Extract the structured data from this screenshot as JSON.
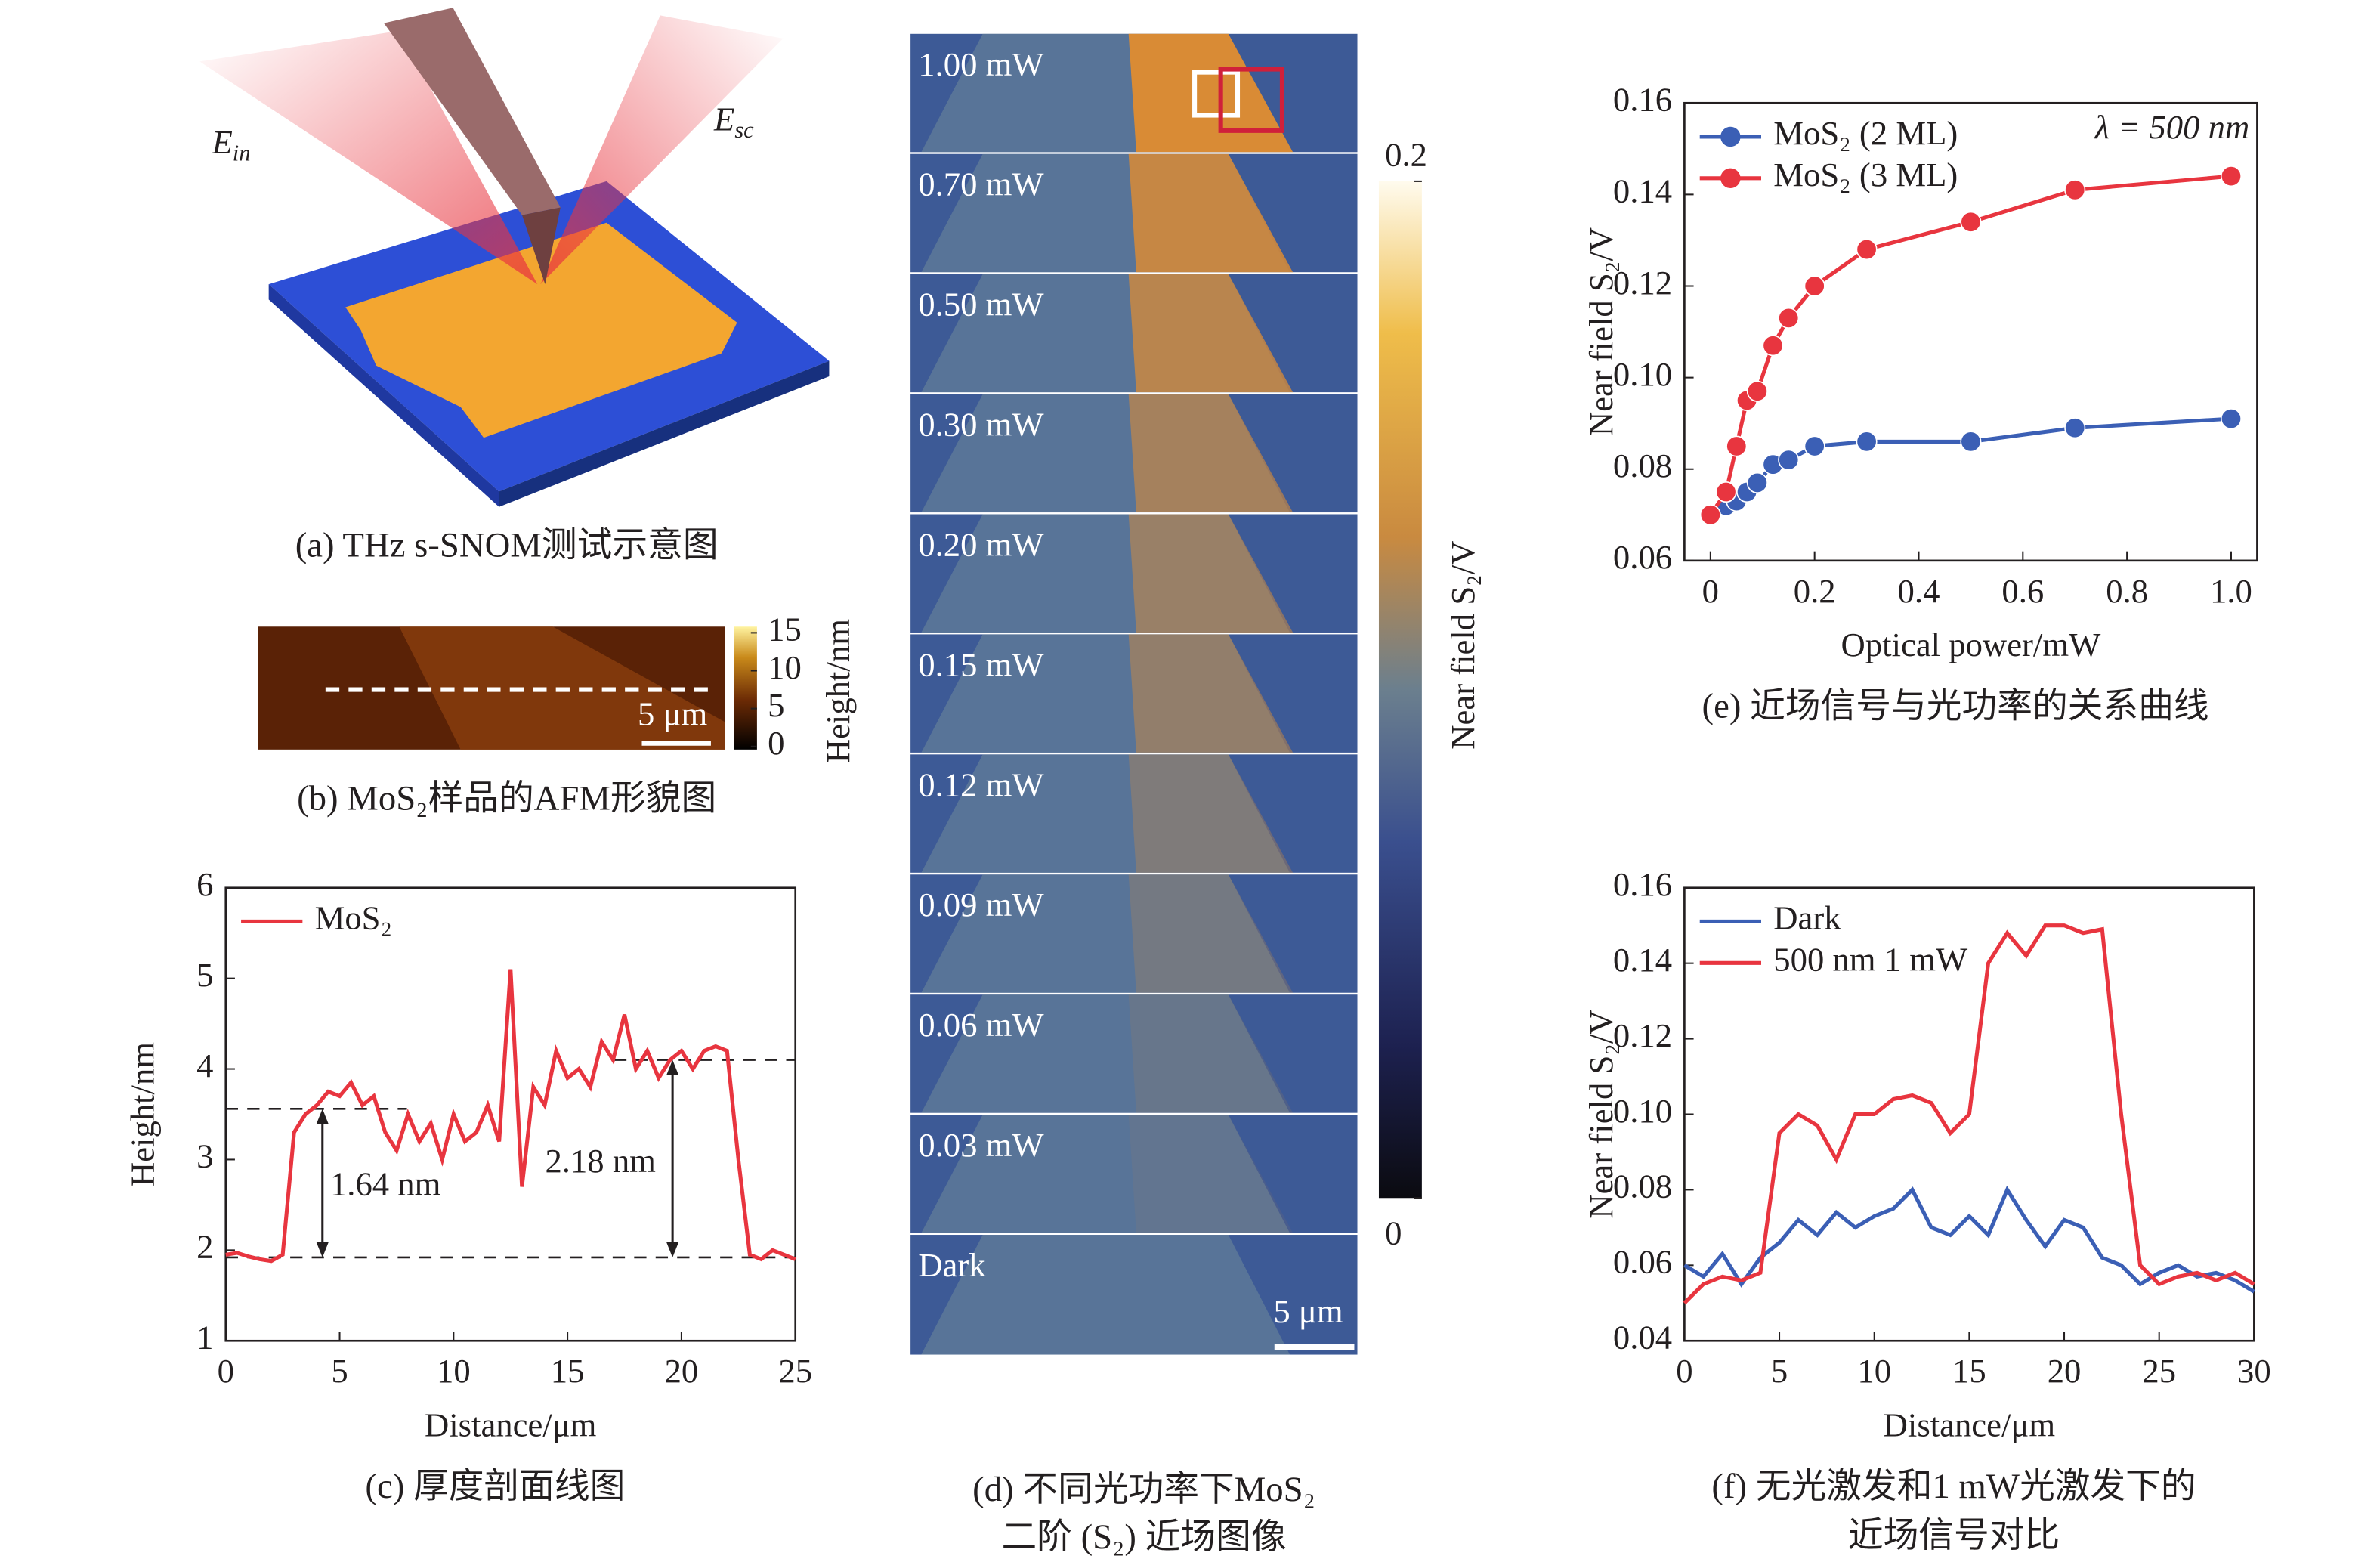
{
  "chart_data": [
    {
      "type": "line",
      "caption": "(c) 厚度剖面线图",
      "xlabel": "Distance/μm",
      "ylabel": "Height/nm",
      "x": [
        0,
        0.5,
        1,
        1.5,
        2,
        2.5,
        3,
        3.5,
        4,
        4.5,
        5,
        5.5,
        6,
        6.5,
        7,
        7.5,
        8,
        8.5,
        9,
        9.5,
        10,
        10.5,
        11,
        11.5,
        12,
        12.5,
        13,
        13.5,
        14,
        14.5,
        15,
        15.5,
        16,
        16.5,
        17,
        17.5,
        18,
        18.5,
        19,
        19.5,
        20,
        20.5,
        21,
        21.5,
        22,
        22.5,
        23,
        23.5,
        24,
        24.5,
        25
      ],
      "series": [
        {
          "name": "MoS₂",
          "color": "#e8353f",
          "values": [
            1.95,
            1.97,
            1.93,
            1.9,
            1.88,
            1.95,
            3.3,
            3.5,
            3.6,
            3.75,
            3.7,
            3.85,
            3.6,
            3.7,
            3.3,
            3.1,
            3.5,
            3.2,
            3.4,
            3.0,
            3.5,
            3.2,
            3.3,
            3.6,
            3.2,
            5.1,
            2.7,
            3.8,
            3.6,
            4.2,
            3.9,
            4.0,
            3.8,
            4.3,
            4.1,
            4.6,
            4.0,
            4.2,
            3.9,
            4.1,
            4.2,
            4.0,
            4.2,
            4.25,
            4.2,
            3.0,
            1.95,
            1.9,
            2.0,
            1.95,
            1.9
          ]
        }
      ],
      "reference_lines": [
        3.56,
        1.92,
        4.1
      ],
      "annotations": [
        "1.64 nm",
        "2.18 nm"
      ],
      "xlim": [
        0,
        25
      ],
      "xticks": [
        0,
        5,
        10,
        15,
        20,
        25
      ],
      "ylim": [
        1,
        6
      ],
      "yticks": [
        1,
        2,
        3,
        4,
        5,
        6
      ],
      "legend": "upper left"
    },
    {
      "type": "line",
      "caption": "(e) 近场信号与光功率的关系曲线",
      "xlabel": "Optical power/mW",
      "ylabel": "Near field S₂/V",
      "annotations": [
        "λ = 500 nm"
      ],
      "marker": "o",
      "x": [
        0,
        0.03,
        0.05,
        0.07,
        0.09,
        0.12,
        0.15,
        0.2,
        0.3,
        0.5,
        0.7,
        1.0
      ],
      "series": [
        {
          "name": "MoS₂ (2 ML)",
          "color": "#3b5fb5",
          "values": [
            0.07,
            0.072,
            0.073,
            0.075,
            0.077,
            0.081,
            0.082,
            0.085,
            0.086,
            0.086,
            0.089,
            0.091
          ]
        },
        {
          "name": "MoS₂ (3 ML)",
          "color": "#e8353f",
          "values": [
            0.07,
            0.075,
            0.085,
            0.095,
            0.097,
            0.107,
            0.113,
            0.12,
            0.128,
            0.134,
            0.141,
            0.144
          ]
        }
      ],
      "xlim": [
        -0.05,
        1.05
      ],
      "xticks": [
        0,
        0.2,
        0.4,
        0.6,
        0.8,
        {
          "value": 1,
          "label": "1.0"
        }
      ],
      "ylim": [
        0.06,
        0.16
      ],
      "yticks": [
        0.06,
        0.08,
        {
          "value": 0.1,
          "label": "0.10"
        },
        0.12,
        0.14,
        0.16
      ],
      "legend": "upper left"
    },
    {
      "type": "line",
      "caption": [
        "(f) 无光激发和1 mW光激发下的",
        "近场信号对比"
      ],
      "xlabel": "Distance/μm",
      "ylabel": "Near field S₂/V",
      "x": [
        0,
        1,
        2,
        3,
        4,
        5,
        6,
        7,
        8,
        9,
        10,
        11,
        12,
        13,
        14,
        15,
        16,
        17,
        18,
        19,
        20,
        21,
        22,
        23,
        24,
        25,
        26,
        27,
        28,
        29,
        30
      ],
      "series": [
        {
          "name": "Dark",
          "color": "#3b5fb5",
          "values": [
            0.06,
            0.057,
            0.063,
            0.055,
            0.062,
            0.066,
            0.072,
            0.068,
            0.074,
            0.07,
            0.073,
            0.075,
            0.08,
            0.07,
            0.068,
            0.073,
            0.068,
            0.08,
            0.072,
            0.065,
            0.072,
            0.07,
            0.062,
            0.06,
            0.055,
            0.058,
            0.06,
            0.057,
            0.058,
            0.056,
            0.053
          ]
        },
        {
          "name": "500 nm 1 mW",
          "color": "#e8353f",
          "values": [
            0.05,
            0.055,
            0.057,
            0.056,
            0.058,
            0.095,
            0.1,
            0.097,
            0.088,
            0.1,
            0.1,
            0.104,
            0.105,
            0.103,
            0.095,
            0.1,
            0.14,
            0.148,
            0.142,
            0.15,
            0.15,
            0.148,
            0.149,
            0.1,
            0.06,
            0.055,
            0.057,
            0.058,
            0.056,
            0.058,
            0.055
          ]
        }
      ],
      "xlim": [
        0,
        30
      ],
      "xticks": [
        0,
        5,
        10,
        15,
        20,
        25,
        30
      ],
      "ylim": [
        0.04,
        0.16
      ],
      "yticks": [
        0.04,
        0.06,
        0.08,
        {
          "value": 0.1,
          "label": "0.10"
        },
        0.12,
        0.14,
        0.16
      ],
      "legend": "upper left"
    }
  ],
  "figure": {
    "panel_a": {
      "caption": "(a) THz s-SNOM测试示意图",
      "incident": {
        "symbol": "E",
        "subscript": "in"
      },
      "scattered": {
        "symbol": "E",
        "subscript": "sc"
      }
    },
    "panel_b": {
      "caption": "(b) MoS₂样品的AFM形貌图",
      "scale_bar": "5 μm",
      "colorbar": {
        "label": "Height/nm",
        "lim": [
          0,
          15
        ],
        "ticks": [
          15,
          10,
          5,
          0
        ]
      }
    },
    "panel_d": {
      "caption": [
        "(d) 不同光功率下MoS₂",
        "二阶 (S₂) 近场图像"
      ],
      "frame_labels": [
        "1.00 mW",
        "0.70 mW",
        "0.50 mW",
        "0.30 mW",
        "0.20 mW",
        "0.15 mW",
        "0.12 mW",
        "0.09 mW",
        "0.06 mW",
        "0.03 mW",
        "Dark"
      ],
      "scale_bar": "5 μm",
      "colorbar": {
        "label": "Near field S₂/V",
        "lim": [
          0,
          0.2
        ],
        "ticks": [
          0.2,
          0
        ]
      }
    }
  }
}
